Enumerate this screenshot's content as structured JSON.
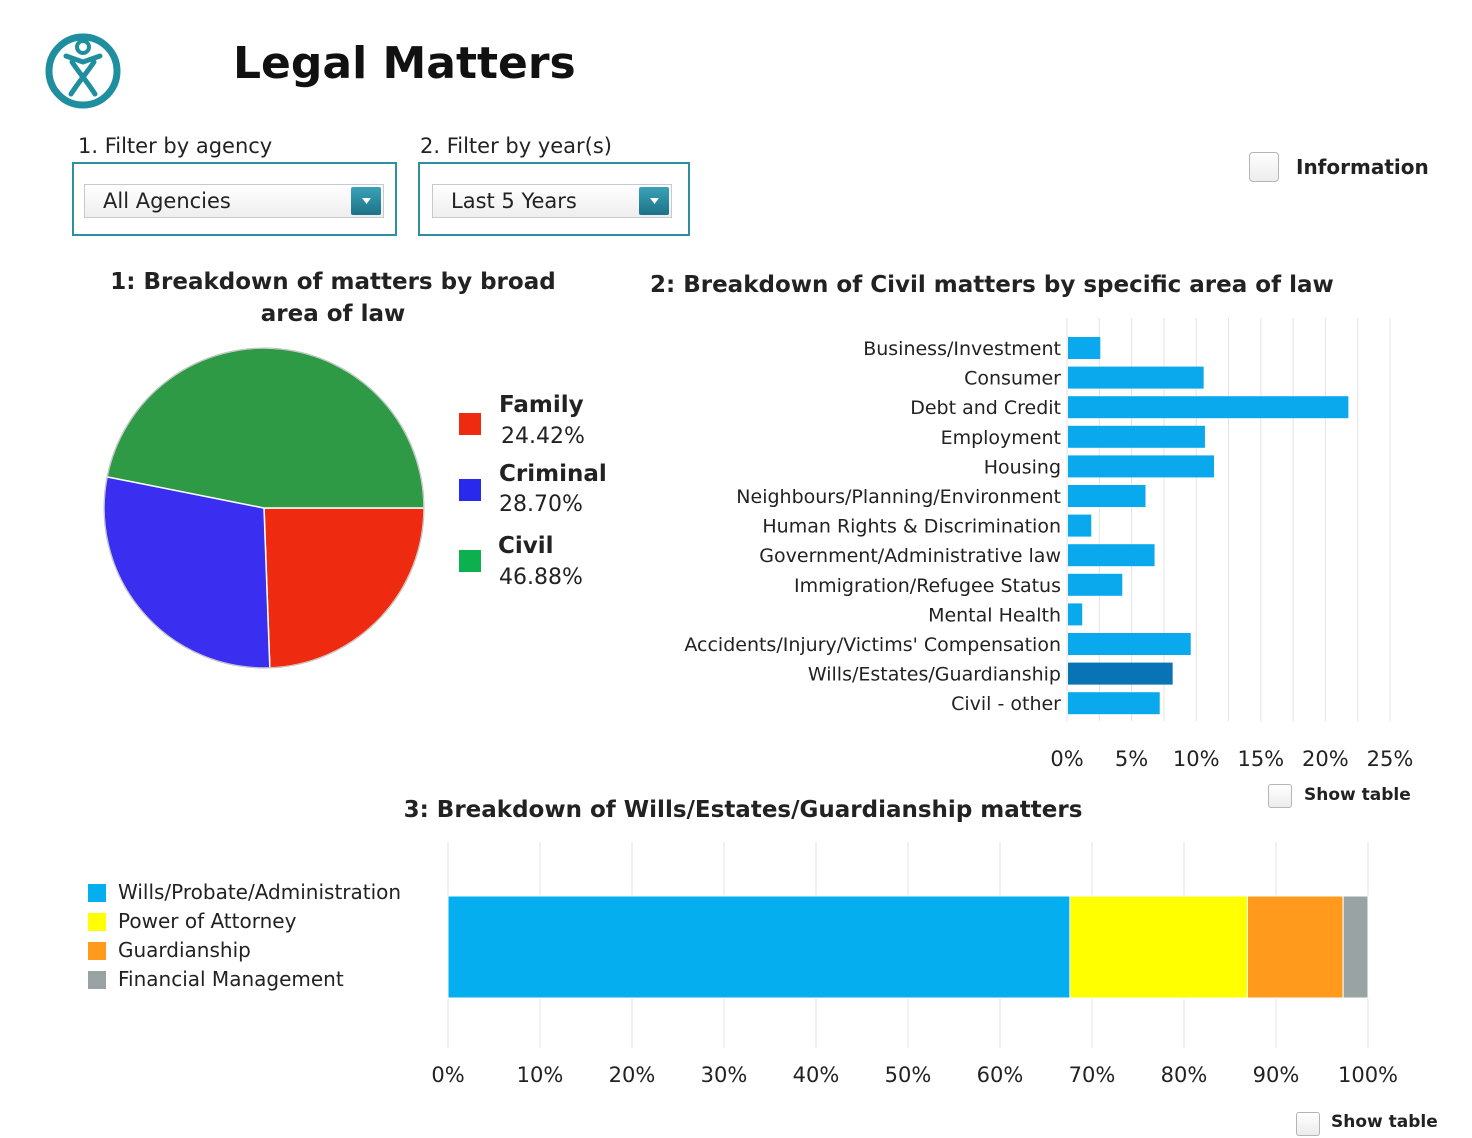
{
  "header": {
    "title": "Legal Matters",
    "logo_icon": "person-circle-logo-icon",
    "accent_color": "#1f8fa0"
  },
  "filters": {
    "agency": {
      "label": "1. Filter by agency",
      "selected": "All Agencies"
    },
    "years": {
      "label": "2. Filter by year(s)",
      "selected": "Last 5 Years"
    }
  },
  "information": {
    "label": "Information",
    "checked": false
  },
  "chart1_controls": {},
  "chart2_controls": {
    "show_table_label": "Show table",
    "checked": false
  },
  "chart3_controls": {
    "show_table_label": "Show table",
    "checked": false
  },
  "chart_data": [
    {
      "type": "pie",
      "title": "1: Breakdown of matters by broad area of law",
      "slices": [
        {
          "name": "Family",
          "value": 24.42,
          "label": "24.42%",
          "color": "#ee2a10"
        },
        {
          "name": "Criminal",
          "value": 28.7,
          "label": "28.70%",
          "color": "#3a2ef0"
        },
        {
          "name": "Civil",
          "value": 46.88,
          "label": "46.88%",
          "color": "#2e9a46"
        }
      ],
      "legend_position": "right"
    },
    {
      "type": "bar",
      "orientation": "horizontal",
      "title": "2: Breakdown of Civil matters by specific area of law",
      "categories": [
        "Business/Investment",
        "Consumer",
        "Debt and Credit",
        "Employment",
        "Housing",
        "Neighbours/Planning/Environment",
        "Human Rights & Discrimination",
        "Government/Administrative law",
        "Immigration/Refugee Status",
        "Mental Health",
        "Accidents/Injury/Victims' Compensation",
        "Wills/Estates/Guardianship",
        "Civil - other"
      ],
      "values": [
        2.5,
        10.5,
        21.7,
        10.6,
        11.3,
        6.0,
        1.8,
        6.7,
        4.2,
        1.1,
        9.5,
        8.1,
        7.1
      ],
      "highlight_index": 11,
      "bar_color": "#0aa9ee",
      "highlight_color": "#0873b5",
      "xlim": [
        0,
        25
      ],
      "xticks": [
        "0%",
        "5%",
        "10%",
        "15%",
        "20%",
        "25%"
      ],
      "grid": true
    },
    {
      "type": "bar",
      "orientation": "horizontal",
      "stacked": true,
      "title": "3: Breakdown of Wills/Estates/Guardianship matters",
      "series": [
        {
          "name": "Wills/Probate/Administration",
          "value": 67.6,
          "color": "#04aeef"
        },
        {
          "name": "Power of Attorney",
          "value": 19.3,
          "color": "#ffff00"
        },
        {
          "name": "Guardianship",
          "value": 10.4,
          "color": "#ff9a1c"
        },
        {
          "name": "Financial Management",
          "value": 2.7,
          "color": "#99a3a4"
        }
      ],
      "xlim": [
        0,
        100
      ],
      "xticks": [
        "0%",
        "10%",
        "20%",
        "30%",
        "40%",
        "50%",
        "60%",
        "70%",
        "80%",
        "90%",
        "100%"
      ],
      "grid": true,
      "legend_position": "left"
    }
  ]
}
